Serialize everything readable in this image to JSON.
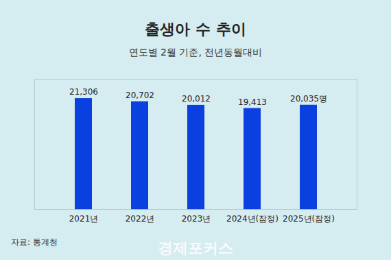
{
  "chart_data": {
    "type": "bar",
    "title": "출생아 수 추이",
    "subtitle": "연도별 2월 기준, 전년동월대비",
    "categories": [
      "2021년",
      "2022년",
      "2023년",
      "2024년(잠정)",
      "2025년(잠정)"
    ],
    "values": [
      21306,
      20702,
      20012,
      19413,
      20035
    ],
    "value_labels": [
      "21,306",
      "20,702",
      "20,012",
      "19,413",
      "20,035명"
    ],
    "data_labels": true,
    "color": "#0a3fe0",
    "ylim": [
      0,
      25000
    ],
    "yticks": [],
    "tick_labels": "x",
    "grid": false,
    "source": "자료: 통계청",
    "watermark": "경제포커스"
  }
}
